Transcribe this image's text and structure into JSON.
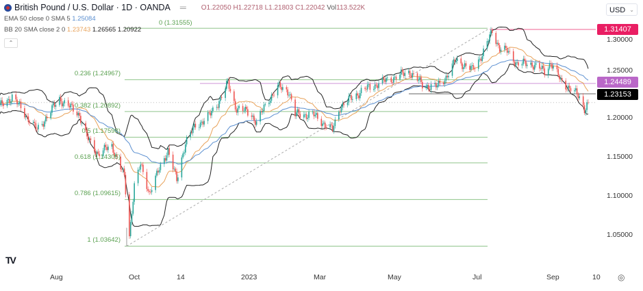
{
  "header": {
    "symbol_title": "British Pound / U.S. Dollar · 1D · OANDA",
    "open": "O1.22050",
    "high": "H1.22718",
    "low": "L1.21803",
    "close": "C1.22042",
    "vol_label": "Vol",
    "vol_value": "113.522K"
  },
  "indicators": {
    "ema_label": "EMA 50 close 0 SMA 5",
    "ema_value": "1.25084",
    "bb_label": "BB 20 SMA close 2 0",
    "bb_basis": "1.23743",
    "bb_upper": "1.26565",
    "bb_lower": "1.20922"
  },
  "currency_selector": {
    "value": "USD"
  },
  "price_axis": {
    "ticks": [
      "1.30000",
      "1.25000",
      "1.20000",
      "1.15000",
      "1.10000",
      "1.05000"
    ]
  },
  "time_axis": {
    "ticks": [
      "Aug",
      "Oct",
      "14",
      "2023",
      "Mar",
      "May",
      "Jul",
      "Sep",
      "10"
    ]
  },
  "price_tags": [
    {
      "value": "1.31407",
      "color": "#e91e63"
    },
    {
      "value": "1.24489",
      "color": "#ba68c8"
    },
    {
      "value": "1.23153",
      "color": "#000000"
    }
  ],
  "fibonacci": [
    {
      "label": "0 (1.31555)",
      "price": 1.31555
    },
    {
      "label": "0.236 (1.24967)",
      "price": 1.24967
    },
    {
      "label": "0.382 (1.20892)",
      "price": 1.20892
    },
    {
      "label": "0.5 (1.17598)",
      "price": 1.17598
    },
    {
      "label": "0.618 (1.14305)",
      "price": 1.14305
    },
    {
      "label": "0.786 (1.09615)",
      "price": 1.09615
    },
    {
      "label": "1 (1.03642)",
      "price": 1.03642
    }
  ],
  "colors": {
    "up": "#26a69a",
    "down": "#ef5350",
    "ema": "#5b8fd0",
    "bb_basis": "#e8a25a",
    "bb_bands": "#222222",
    "fib": "#8fc48a"
  },
  "chart_data": {
    "type": "candlestick",
    "symbol": "GBPUSD",
    "interval": "1D",
    "ylim": [
      1.02,
      1.33
    ],
    "closes_approx": [
      [
        "2022-06-14",
        1.215
      ],
      [
        "2022-06-24",
        1.228
      ],
      [
        "2022-07-14",
        1.185
      ],
      [
        "2022-08-01",
        1.225
      ],
      [
        "2022-08-17",
        1.205
      ],
      [
        "2022-08-23",
        1.175
      ],
      [
        "2022-09-01",
        1.155
      ],
      [
        "2022-09-12",
        1.165
      ],
      [
        "2022-09-22",
        1.125
      ],
      [
        "2022-09-26",
        1.05
      ],
      [
        "2022-09-30",
        1.115
      ],
      [
        "2022-10-05",
        1.14
      ],
      [
        "2022-10-12",
        1.105
      ],
      [
        "2022-10-27",
        1.16
      ],
      [
        "2022-11-03",
        1.12
      ],
      [
        "2022-11-10",
        1.17
      ],
      [
        "2022-11-18",
        1.19
      ],
      [
        "2022-11-30",
        1.205
      ],
      [
        "2022-12-06",
        1.22
      ],
      [
        "2022-12-14",
        1.245
      ],
      [
        "2022-12-20",
        1.215
      ],
      [
        "2023-01-02",
        1.205
      ],
      [
        "2023-01-06",
        1.195
      ],
      [
        "2023-01-16",
        1.225
      ],
      [
        "2023-01-23",
        1.24
      ],
      [
        "2023-02-01",
        1.235
      ],
      [
        "2023-02-06",
        1.205
      ],
      [
        "2023-02-20",
        1.205
      ],
      [
        "2023-03-08",
        1.185
      ],
      [
        "2023-03-14",
        1.215
      ],
      [
        "2023-03-31",
        1.235
      ],
      [
        "2023-04-14",
        1.245
      ],
      [
        "2023-05-09",
        1.26
      ],
      [
        "2023-05-19",
        1.243
      ],
      [
        "2023-05-30",
        1.24
      ],
      [
        "2023-06-08",
        1.255
      ],
      [
        "2023-06-15",
        1.275
      ],
      [
        "2023-06-28",
        1.262
      ],
      [
        "2023-07-07",
        1.285
      ],
      [
        "2023-07-14",
        1.312
      ],
      [
        "2023-07-20",
        1.29
      ],
      [
        "2023-07-27",
        1.285
      ],
      [
        "2023-08-03",
        1.27
      ],
      [
        "2023-08-15",
        1.27
      ],
      [
        "2023-08-25",
        1.26
      ],
      [
        "2023-08-30",
        1.272
      ],
      [
        "2023-09-07",
        1.248
      ],
      [
        "2023-09-15",
        1.238
      ],
      [
        "2023-09-22",
        1.227
      ],
      [
        "2023-09-26",
        1.213
      ],
      [
        "2023-09-29",
        1.2204
      ]
    ],
    "horizontal_lines": [
      1.31407,
      1.24489,
      1.23153
    ],
    "current_price": 1.22042
  }
}
